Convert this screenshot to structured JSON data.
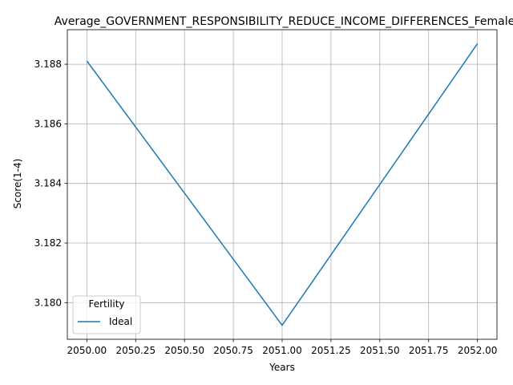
{
  "chart_data": {
    "type": "line",
    "title": "Average_GOVERNMENT_RESPONSIBILITY_REDUCE_INCOME_DIFFERENCES_Female",
    "xlabel": "Years",
    "ylabel": "Score(1-4)",
    "x": [
      2050,
      2051,
      2052
    ],
    "series": [
      {
        "name": "Ideal",
        "values": [
          3.18811,
          3.17924,
          3.18869
        ],
        "color": "#1f77b4"
      }
    ],
    "xlim": [
      2049.9,
      2052.1
    ],
    "ylim": [
      3.17877,
      3.18916
    ],
    "xticks": [
      2050.0,
      2050.25,
      2050.5,
      2050.75,
      2051.0,
      2051.25,
      2051.5,
      2051.75,
      2052.0
    ],
    "xtick_labels": [
      "2050.00",
      "2050.25",
      "2050.50",
      "2050.75",
      "2051.00",
      "2051.25",
      "2051.50",
      "2051.75",
      "2052.00"
    ],
    "yticks": [
      3.18,
      3.182,
      3.184,
      3.186,
      3.188
    ],
    "ytick_labels": [
      "3.180",
      "3.182",
      "3.184",
      "3.186",
      "3.188"
    ],
    "grid": true,
    "legend": {
      "title": "Fertility",
      "placement": "lower-left"
    }
  }
}
